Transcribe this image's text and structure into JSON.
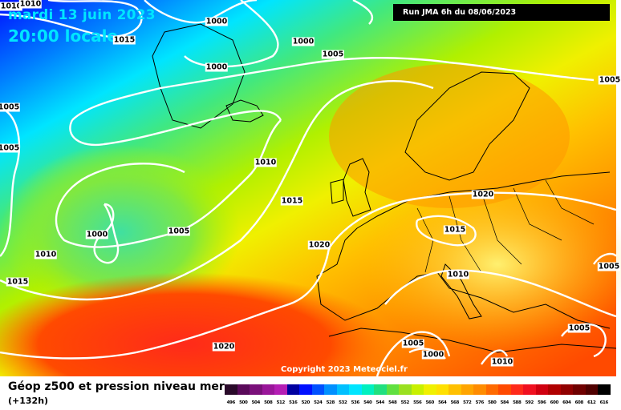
{
  "header": {
    "date": "mardi 13 juin 2023",
    "time": "20:00 locale",
    "run": "Run JMA 6h du 08/06/2023"
  },
  "footer": {
    "title": "Géop z500 et pression niveau mer",
    "subtitle": "(+132h)",
    "copyright": "Copyright 2023 Meteociel.fr"
  },
  "isobar_labels": [
    {
      "text": "1010"
    },
    {
      "text": "1010"
    },
    {
      "text": "1000"
    },
    {
      "text": "1015"
    },
    {
      "text": "1000"
    },
    {
      "text": "1000"
    },
    {
      "text": "1005"
    },
    {
      "text": "1005"
    },
    {
      "text": "1005"
    },
    {
      "text": "1010"
    },
    {
      "text": "1015"
    },
    {
      "text": "1000"
    },
    {
      "text": "1005"
    },
    {
      "text": "1010"
    },
    {
      "text": "1015"
    },
    {
      "text": "1020"
    },
    {
      "text": "1020"
    },
    {
      "text": "1015"
    },
    {
      "text": "1010"
    },
    {
      "text": "1005"
    },
    {
      "text": "1020"
    },
    {
      "text": "1005"
    },
    {
      "text": "1000"
    },
    {
      "text": "1010"
    },
    {
      "text": "1005"
    },
    {
      "text": "1005"
    }
  ],
  "legend": {
    "values": [
      "496",
      "500",
      "504",
      "508",
      "512",
      "516",
      "520",
      "524",
      "528",
      "532",
      "536",
      "540",
      "544",
      "548",
      "552",
      "556",
      "560",
      "564",
      "568",
      "572",
      "576",
      "580",
      "584",
      "588",
      "592",
      "596",
      "600",
      "604",
      "608",
      "612",
      "616"
    ],
    "colors": [
      "#2a0a2a",
      "#5a0a5a",
      "#7a107a",
      "#9a169a",
      "#b41eb4",
      "#0000a0",
      "#0010ff",
      "#0050ff",
      "#0090ff",
      "#00c0ff",
      "#00e5ff",
      "#00f0c0",
      "#20e080",
      "#60e040",
      "#9ae020",
      "#c8f000",
      "#f0f000",
      "#ffe000",
      "#ffc000",
      "#ffa500",
      "#ff8c00",
      "#ff6a00",
      "#ff4a00",
      "#ff2a1a",
      "#f01020",
      "#d00010",
      "#b00000",
      "#900000",
      "#700000",
      "#500000",
      "#000000"
    ]
  }
}
